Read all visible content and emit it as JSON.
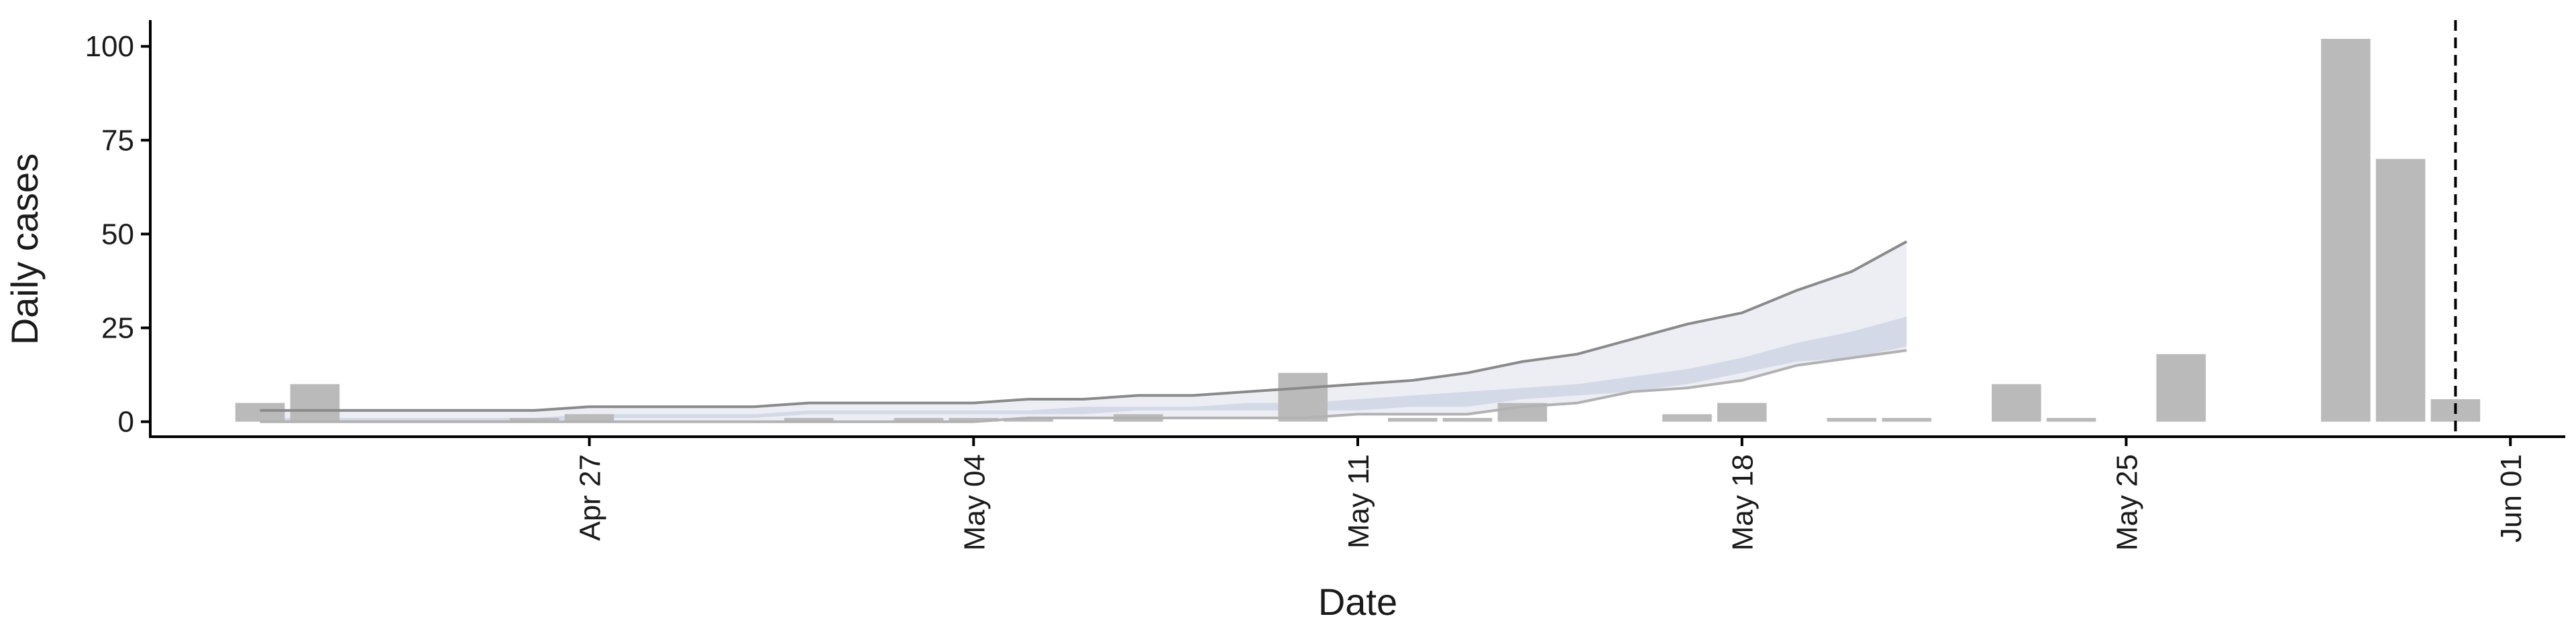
{
  "chart_data": {
    "type": "bar",
    "xlabel": "Date",
    "ylabel": "Daily cases",
    "ylim": [
      -4,
      107
    ],
    "xlim": [
      "2020-04-19",
      "2020-06-02"
    ],
    "yticks": [
      0,
      25,
      50,
      75,
      100
    ],
    "ytick_labels": [
      "0",
      "25",
      "50",
      "75",
      "100"
    ],
    "xticks": [
      "2020-04-27",
      "2020-05-04",
      "2020-05-11",
      "2020-05-18",
      "2020-05-25",
      "2020-06-01"
    ],
    "xtick_labels": [
      "Apr 27",
      "May 04",
      "May 11",
      "May 18",
      "May 25",
      "Jun 01"
    ],
    "grid": false,
    "colors": {
      "bars": "#bababa",
      "band_outer": "#eceef4",
      "band_inner": "#cfd5e3",
      "band_outer_line": "#8a8a8a",
      "band_mid_line": "#b2b2b2",
      "vline": "#000000",
      "axis": "#000000"
    },
    "series": [
      {
        "type": "bar",
        "x": [
          "2020-04-21",
          "2020-04-22",
          "2020-04-26",
          "2020-04-27",
          "2020-05-01",
          "2020-05-03",
          "2020-05-04",
          "2020-05-05",
          "2020-05-07",
          "2020-05-10",
          "2020-05-12",
          "2020-05-13",
          "2020-05-14",
          "2020-05-17",
          "2020-05-18",
          "2020-05-20",
          "2020-05-21",
          "2020-05-23",
          "2020-05-24",
          "2020-05-26",
          "2020-05-29",
          "2020-05-30",
          "2020-05-31"
        ],
        "values": [
          5,
          10,
          1,
          2,
          1,
          1,
          1,
          1,
          2,
          13,
          1,
          1,
          5,
          2,
          5,
          1,
          1,
          10,
          1,
          18,
          102,
          70,
          6
        ]
      },
      {
        "type": "area",
        "x": [
          "2020-04-21",
          "2020-04-22",
          "2020-04-23",
          "2020-04-24",
          "2020-04-25",
          "2020-04-26",
          "2020-04-27",
          "2020-04-28",
          "2020-04-29",
          "2020-04-30",
          "2020-05-01",
          "2020-05-02",
          "2020-05-03",
          "2020-05-04",
          "2020-05-05",
          "2020-05-06",
          "2020-05-07",
          "2020-05-08",
          "2020-05-09",
          "2020-05-10",
          "2020-05-11",
          "2020-05-12",
          "2020-05-13",
          "2020-05-14",
          "2020-05-15",
          "2020-05-16",
          "2020-05-17",
          "2020-05-18",
          "2020-05-19",
          "2020-05-20",
          "2020-05-21"
        ],
        "outer_upper": [
          3,
          3,
          3,
          3,
          3,
          3,
          4,
          4,
          4,
          4,
          5,
          5,
          5,
          5,
          6,
          6,
          7,
          7,
          8,
          9,
          10,
          11,
          13,
          16,
          18,
          22,
          26,
          29,
          35,
          40,
          48
        ],
        "outer_lower": [
          0,
          0,
          0,
          0,
          0,
          0,
          0,
          0,
          0,
          0,
          0,
          0,
          0,
          0,
          1,
          1,
          1,
          1,
          1,
          1,
          2,
          2,
          2,
          4,
          5,
          8,
          9,
          11,
          15,
          17,
          19
        ],
        "inner_upper": [
          1,
          1,
          1,
          1,
          1,
          1,
          2,
          2,
          2,
          2,
          3,
          3,
          3,
          3,
          3,
          4,
          4,
          4,
          5,
          5,
          6,
          7,
          8,
          9,
          10,
          12,
          14,
          17,
          21,
          24,
          28
        ],
        "inner_lower": [
          0,
          0,
          0,
          0,
          0,
          0,
          1,
          1,
          1,
          1,
          2,
          2,
          2,
          2,
          2,
          2,
          3,
          3,
          3,
          3,
          3,
          4,
          4,
          6,
          7,
          8,
          10,
          13,
          16,
          17,
          20
        ],
        "mid_line": [
          0,
          0,
          0,
          0,
          0,
          0,
          0,
          0,
          0,
          0,
          0,
          0,
          0,
          0,
          1,
          1,
          1,
          1,
          1,
          1,
          2,
          2,
          2,
          4,
          5,
          8,
          9,
          11,
          15,
          17,
          19
        ]
      }
    ],
    "reference_line": {
      "orientation": "vertical",
      "x": "2020-05-31",
      "style": "dashed"
    }
  }
}
